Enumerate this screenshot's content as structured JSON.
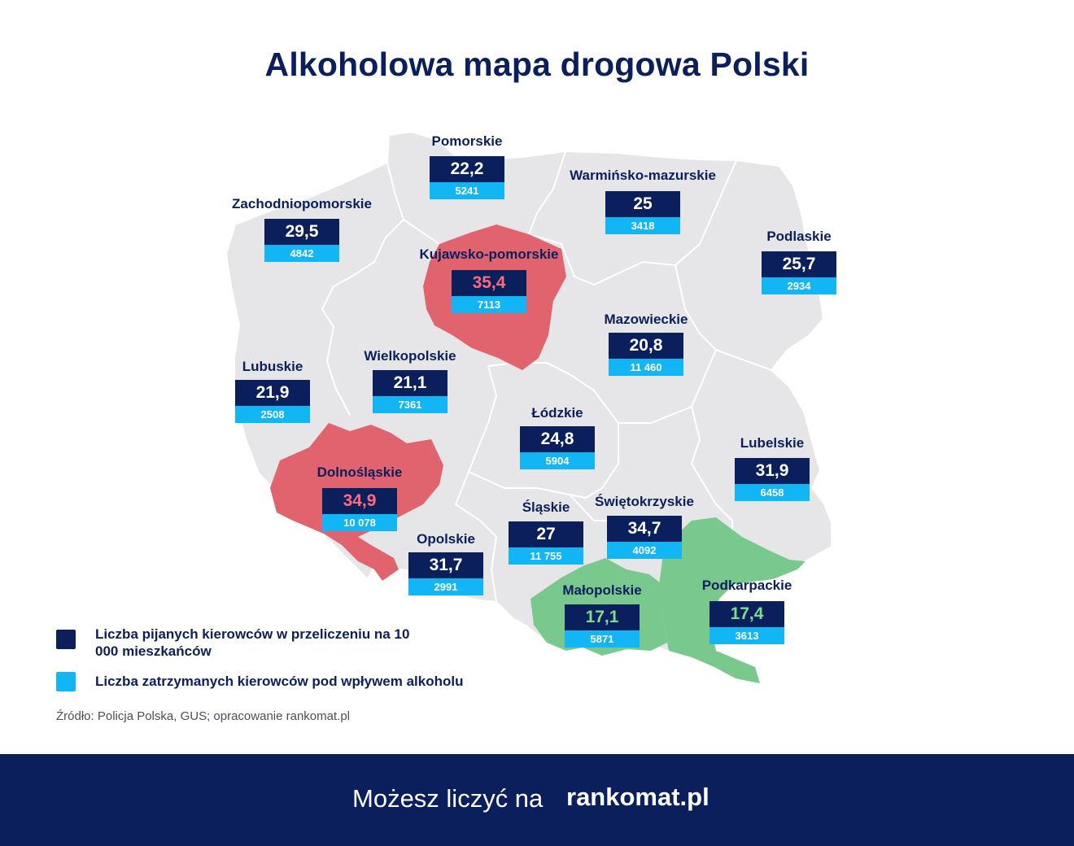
{
  "title": "Alkoholowa mapa drogowa Polski",
  "colors": {
    "navy": "#0b1f5c",
    "cyan": "#12b6f5",
    "map_gray": "#e6e6e8",
    "highest_red": "#e0636d",
    "lowest_green": "#79c98f"
  },
  "regions": [
    {
      "name": "Pomorskie",
      "rate": "22,2",
      "count": "5241",
      "highlight": "none"
    },
    {
      "name": "Warmińsko-mazurskie",
      "rate": "25",
      "count": "3418",
      "highlight": "none"
    },
    {
      "name": "Zachodniopomorskie",
      "rate": "29,5",
      "count": "4842",
      "highlight": "none"
    },
    {
      "name": "Kujawsko-pomorskie",
      "rate": "35,4",
      "count": "7113",
      "highlight": "red"
    },
    {
      "name": "Podlaskie",
      "rate": "25,7",
      "count": "2934",
      "highlight": "none"
    },
    {
      "name": "Mazowieckie",
      "rate": "20,8",
      "count": "11 460",
      "highlight": "none"
    },
    {
      "name": "Wielkopolskie",
      "rate": "21,1",
      "count": "7361",
      "highlight": "none"
    },
    {
      "name": "Lubuskie",
      "rate": "21,9",
      "count": "2508",
      "highlight": "none"
    },
    {
      "name": "Łódzkie",
      "rate": "24,8",
      "count": "5904",
      "highlight": "none"
    },
    {
      "name": "Lubelskie",
      "rate": "31,9",
      "count": "6458",
      "highlight": "none"
    },
    {
      "name": "Dolnośląskie",
      "rate": "34,9",
      "count": "10 078",
      "highlight": "red"
    },
    {
      "name": "Śląskie",
      "rate": "27",
      "count": "11 755",
      "highlight": "none"
    },
    {
      "name": "Świętokrzyskie",
      "rate": "34,7",
      "count": "4092",
      "highlight": "none"
    },
    {
      "name": "Opolskie",
      "rate": "31,7",
      "count": "2991",
      "highlight": "none"
    },
    {
      "name": "Małopolskie",
      "rate": "17,1",
      "count": "5871",
      "highlight": "green"
    },
    {
      "name": "Podkarpackie",
      "rate": "17,4",
      "count": "3613",
      "highlight": "green"
    }
  ],
  "legend": {
    "rate_label": "Liczba pijanych kierowców w przeliczeniu na 10 000 mieszkańców",
    "count_label": "Liczba zatrzymanych kierowców pod wpływem alkoholu"
  },
  "source": "Źródło: Policja Polska, GUS; opracowanie rankomat.pl",
  "footer": {
    "tagline": "Możesz liczyć na",
    "brand": "rankomat.pl"
  }
}
